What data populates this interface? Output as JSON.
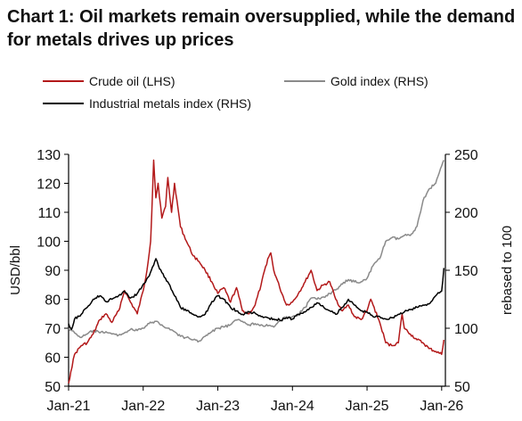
{
  "title": "Chart 1: Oil markets remain oversupplied, while the demand for metals drives up prices",
  "colors": {
    "crude": "#b3191a",
    "gold": "#8a8a8a",
    "metals": "#000000",
    "axis": "#000000"
  },
  "chart_data": {
    "type": "line",
    "title": "Chart 1: Oil markets remain oversupplied, while the demand for metals drives up prices",
    "ylabel_left": "USD/bbl",
    "ylabel_right": "rebased to 100",
    "ylim_left": [
      50,
      130
    ],
    "ylim_right": [
      50,
      250
    ],
    "yticks_left": [
      "50",
      "60",
      "70",
      "80",
      "90",
      "100",
      "110",
      "120",
      "130"
    ],
    "yticks_right": [
      "50",
      "100",
      "150",
      "200",
      "250"
    ],
    "xlim": [
      2021.0,
      2026.05
    ],
    "xticks": [
      {
        "x": 2021.0,
        "label": "Jan-21"
      },
      {
        "x": 2022.0,
        "label": "Jan-22"
      },
      {
        "x": 2023.0,
        "label": "Jan-23"
      },
      {
        "x": 2024.0,
        "label": "Jan-24"
      },
      {
        "x": 2025.0,
        "label": "Jan-25"
      },
      {
        "x": 2026.0,
        "label": "Jan-26"
      }
    ],
    "legend_position": "top",
    "series": [
      {
        "name": "Crude oil (LHS)",
        "axis": "left",
        "x": [
          2021.0,
          2021.03,
          2021.08,
          2021.17,
          2021.25,
          2021.33,
          2021.42,
          2021.5,
          2021.58,
          2021.67,
          2021.75,
          2021.83,
          2021.92,
          2022.0,
          2022.05,
          2022.1,
          2022.14,
          2022.17,
          2022.2,
          2022.25,
          2022.3,
          2022.33,
          2022.38,
          2022.42,
          2022.5,
          2022.58,
          2022.67,
          2022.75,
          2022.83,
          2022.92,
          2023.0,
          2023.08,
          2023.17,
          2023.25,
          2023.33,
          2023.42,
          2023.5,
          2023.58,
          2023.67,
          2023.71,
          2023.75,
          2023.83,
          2023.92,
          2024.0,
          2024.08,
          2024.17,
          2024.25,
          2024.33,
          2024.42,
          2024.5,
          2024.58,
          2024.67,
          2024.75,
          2024.83,
          2024.92,
          2025.0,
          2025.05,
          2025.17,
          2025.25,
          2025.33,
          2025.42,
          2025.47,
          2025.5,
          2025.58,
          2025.67,
          2025.75,
          2025.83,
          2025.92,
          2026.0,
          2026.03
        ],
        "y": [
          51,
          55,
          61,
          64,
          65,
          68,
          73,
          75,
          72,
          76,
          83,
          79,
          75,
          83,
          90,
          100,
          128,
          115,
          120,
          108,
          112,
          122,
          110,
          120,
          105,
          100,
          95,
          93,
          90,
          86,
          82,
          84,
          79,
          84,
          76,
          75,
          78,
          85,
          94,
          96,
          90,
          84,
          78,
          79,
          82,
          86,
          90,
          83,
          85,
          86,
          80,
          76,
          78,
          74,
          73,
          76,
          80,
          72,
          65,
          64,
          65,
          75,
          70,
          68,
          66,
          65,
          63,
          62,
          61,
          66
        ]
      },
      {
        "name": "Gold index (RHS)",
        "axis": "right",
        "x": [
          2021.0,
          2021.08,
          2021.17,
          2021.25,
          2021.33,
          2021.42,
          2021.5,
          2021.58,
          2021.67,
          2021.75,
          2021.83,
          2021.92,
          2022.0,
          2022.08,
          2022.17,
          2022.25,
          2022.33,
          2022.42,
          2022.5,
          2022.58,
          2022.67,
          2022.75,
          2022.83,
          2022.92,
          2023.0,
          2023.08,
          2023.17,
          2023.25,
          2023.33,
          2023.42,
          2023.5,
          2023.58,
          2023.67,
          2023.75,
          2023.83,
          2023.92,
          2024.0,
          2024.08,
          2024.17,
          2024.25,
          2024.33,
          2024.42,
          2024.5,
          2024.58,
          2024.67,
          2024.75,
          2024.83,
          2024.92,
          2025.0,
          2025.08,
          2025.17,
          2025.25,
          2025.33,
          2025.42,
          2025.5,
          2025.58,
          2025.67,
          2025.75,
          2025.83,
          2025.92,
          2026.0,
          2026.03
        ],
        "y": [
          100,
          96,
          92,
          95,
          98,
          96,
          97,
          95,
          94,
          96,
          99,
          98,
          100,
          104,
          106,
          103,
          100,
          97,
          93,
          92,
          90,
          89,
          93,
          97,
          100,
          101,
          103,
          107,
          106,
          103,
          104,
          103,
          102,
          101,
          106,
          110,
          110,
          112,
          118,
          126,
          125,
          127,
          130,
          133,
          138,
          142,
          140,
          140,
          143,
          154,
          160,
          175,
          178,
          177,
          180,
          180,
          188,
          210,
          220,
          225,
          240,
          245
        ]
      },
      {
        "name": "Industrial metals index (RHS)",
        "axis": "right",
        "x": [
          2021.0,
          2021.04,
          2021.08,
          2021.17,
          2021.25,
          2021.33,
          2021.42,
          2021.5,
          2021.58,
          2021.67,
          2021.75,
          2021.83,
          2021.92,
          2022.0,
          2022.08,
          2022.17,
          2022.22,
          2022.25,
          2022.33,
          2022.42,
          2022.5,
          2022.58,
          2022.67,
          2022.75,
          2022.83,
          2022.92,
          2023.0,
          2023.08,
          2023.17,
          2023.25,
          2023.33,
          2023.42,
          2023.5,
          2023.58,
          2023.67,
          2023.75,
          2023.83,
          2023.92,
          2024.0,
          2024.08,
          2024.17,
          2024.25,
          2024.33,
          2024.42,
          2024.5,
          2024.58,
          2024.67,
          2024.75,
          2024.83,
          2024.92,
          2025.0,
          2025.08,
          2025.17,
          2025.25,
          2025.33,
          2025.42,
          2025.5,
          2025.58,
          2025.67,
          2025.75,
          2025.83,
          2025.92,
          2026.0,
          2026.03
        ],
        "y": [
          104,
          99,
          108,
          112,
          118,
          125,
          128,
          123,
          125,
          128,
          132,
          126,
          130,
          138,
          145,
          160,
          151,
          148,
          140,
          128,
          118,
          115,
          112,
          110,
          112,
          123,
          128,
          125,
          118,
          115,
          112,
          114,
          113,
          110,
          109,
          108,
          107,
          109,
          108,
          112,
          114,
          118,
          122,
          118,
          115,
          112,
          118,
          125,
          120,
          115,
          114,
          110,
          110,
          108,
          109,
          112,
          114,
          116,
          118,
          120,
          121,
          128,
          132,
          152
        ]
      }
    ]
  }
}
